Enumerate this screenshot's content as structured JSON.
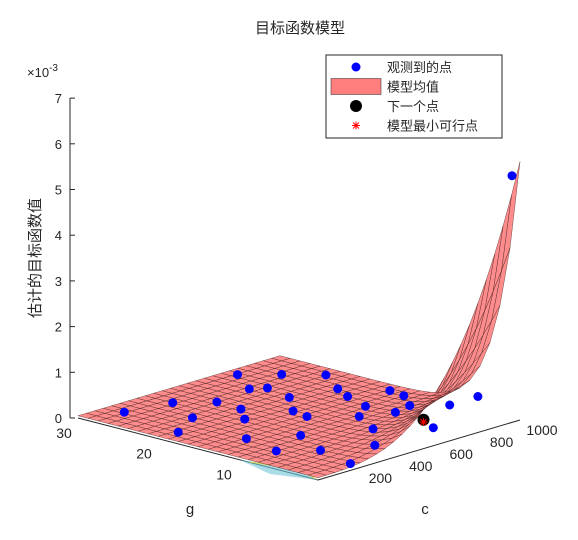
{
  "chart_data": {
    "type": "surface3d",
    "title": "目标函数模型",
    "zlabel": "估计的目标函数值",
    "xlabel": "g",
    "ylabel": "c",
    "z_exponent_label": "×10",
    "z_exponent_power": "-3",
    "zlim": [
      0,
      7
    ],
    "z_ticks": [
      "0",
      "1",
      "2",
      "3",
      "4",
      "5",
      "6",
      "7"
    ],
    "g_ticks": [
      "10",
      "20",
      "30"
    ],
    "g_range": [
      0,
      30
    ],
    "c_ticks": [
      "200",
      "400",
      "600",
      "800",
      "1000"
    ],
    "c_range": [
      0,
      1000
    ],
    "surface_peak_z": 5.6,
    "legend": [
      {
        "label": "观测到的点",
        "marker": "blue-dot",
        "color": "#0000ff"
      },
      {
        "label": "模型均值",
        "marker": "patch",
        "color": "#ff7f7f"
      },
      {
        "label": "下一个点",
        "marker": "black-dot",
        "color": "#000000"
      },
      {
        "label": "模型最小可行点",
        "marker": "red-asterisk",
        "color": "#ff0000"
      }
    ],
    "observed_points": [
      {
        "g": 0.5,
        "c": 980,
        "z": 5.35
      },
      {
        "g": 5,
        "c": 850,
        "z": 0.3
      },
      {
        "g": 8,
        "c": 700,
        "z": 0.2
      },
      {
        "g": 10,
        "c": 600,
        "z": 0.15
      },
      {
        "g": 12,
        "c": 900,
        "z": 0.12
      },
      {
        "g": 14,
        "c": 500,
        "z": 0.1
      },
      {
        "g": 16,
        "c": 780,
        "z": 0.08
      },
      {
        "g": 18,
        "c": 350,
        "z": 0.06
      },
      {
        "g": 20,
        "c": 650,
        "z": 0.05
      },
      {
        "g": 22,
        "c": 250,
        "z": 0.04
      },
      {
        "g": 24,
        "c": 450,
        "z": 0.03
      },
      {
        "g": 26,
        "c": 850,
        "z": 0.02
      },
      {
        "g": 28,
        "c": 150,
        "z": 0.02
      },
      {
        "g": 3,
        "c": 400,
        "z": 0.1
      },
      {
        "g": 6,
        "c": 250,
        "z": 0.05
      },
      {
        "g": 9,
        "c": 150,
        "z": 0.03
      },
      {
        "g": 11,
        "c": 350,
        "z": 0.02
      },
      {
        "g": 13,
        "c": 750,
        "z": 0.04
      },
      {
        "g": 15,
        "c": 950,
        "z": 0.03
      },
      {
        "g": 17,
        "c": 550,
        "z": 0.02
      },
      {
        "g": 19,
        "c": 850,
        "z": 0.02
      },
      {
        "g": 21,
        "c": 450,
        "z": 0.01
      },
      {
        "g": 23,
        "c": 950,
        "z": 0.01
      },
      {
        "g": 25,
        "c": 650,
        "z": 0.01
      },
      {
        "g": 27,
        "c": 350,
        "z": 0.01
      },
      {
        "g": 29,
        "c": 750,
        "z": 0.01
      },
      {
        "g": 2,
        "c": 650,
        "z": 0.2
      },
      {
        "g": 4,
        "c": 950,
        "z": 0.4
      },
      {
        "g": 7,
        "c": 550,
        "z": 0.08
      },
      {
        "g": 1,
        "c": 200,
        "z": 0.05
      },
      {
        "g": 14,
        "c": 200,
        "z": 0.01
      },
      {
        "g": 20,
        "c": 100,
        "z": 0.01
      },
      {
        "g": 24,
        "c": 700,
        "z": 0.01
      },
      {
        "g": 10,
        "c": 850,
        "z": 0.06
      }
    ],
    "next_point": {
      "g": 6,
      "c": 760,
      "z": 0.05
    },
    "model_min_feasible": {
      "g": 6,
      "c": 760,
      "z": 0.0
    },
    "grid": true
  }
}
